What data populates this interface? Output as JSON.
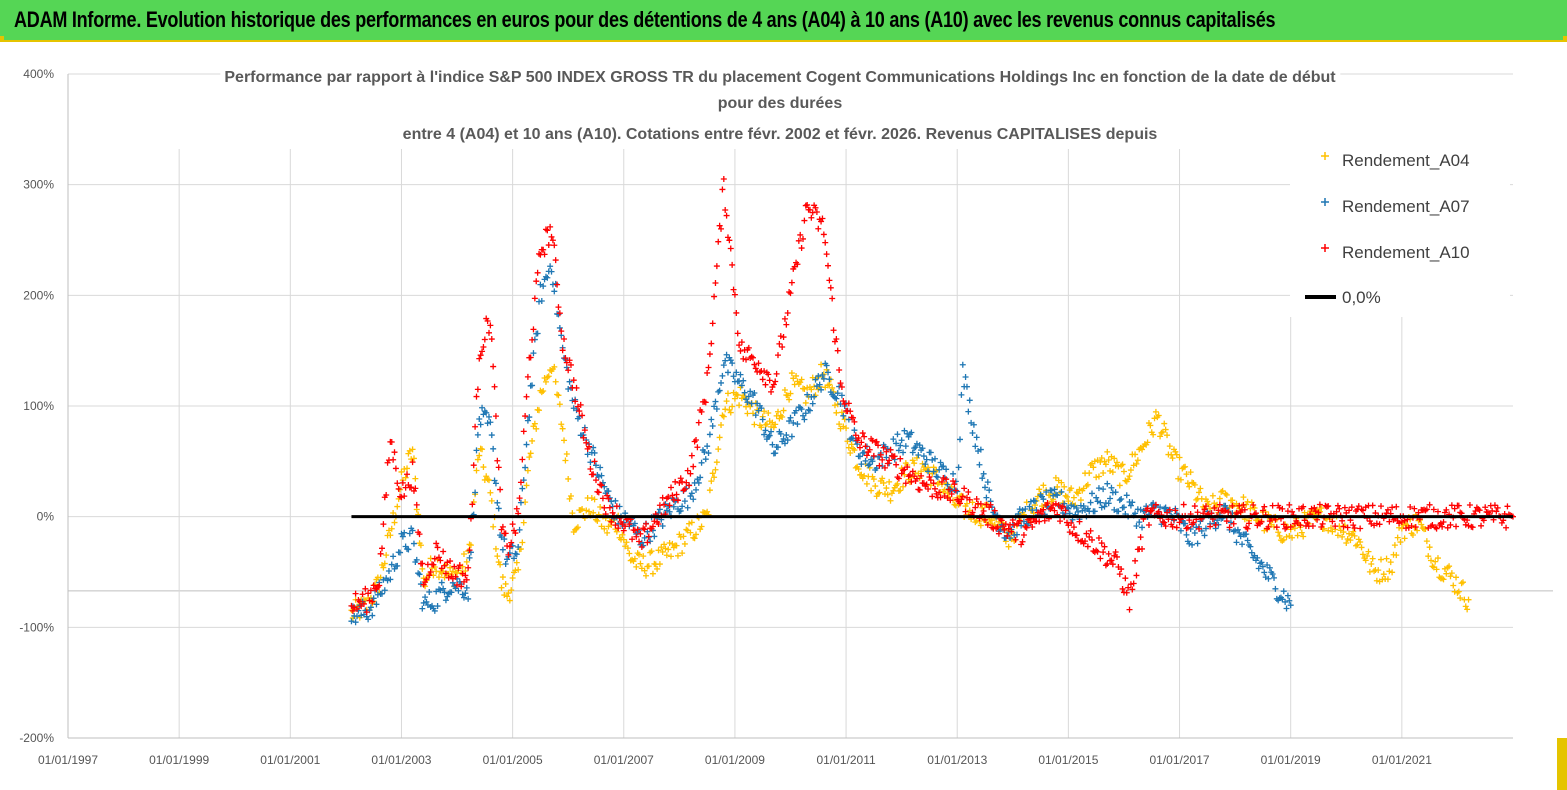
{
  "banner": {
    "title": "ADAM Informe. Evolution historique des performances en euros pour des détentions de 4 ans (A04) à 10 ans (A10) avec les revenus connus capitalisés",
    "color": "#55d655"
  },
  "chart_data": {
    "type": "scatter",
    "title_lines": [
      "Performance par rapport à l'indice S&P 500 INDEX GROSS TR  du placement Cogent Communications Holdings Inc en fonction de la date de début",
      "pour des durées",
      "entre 4 (A04) et 10 ans (A10). Cotations entre févr. 2002 et févr. 2026. Revenus CAPITALISES depuis"
    ],
    "y_ticks": [
      "400%",
      "300%",
      "200%",
      "100%",
      "0%",
      "-100%",
      "-200%"
    ],
    "y_range": [
      -200,
      400
    ],
    "x_ticks": [
      "01/01/1997",
      "01/01/1999",
      "01/01/2001",
      "01/01/2003",
      "01/01/2005",
      "01/01/2007",
      "01/01/2009",
      "01/01/2011",
      "01/01/2013",
      "01/01/2015",
      "01/01/2017",
      "01/01/2019",
      "01/01/2021"
    ],
    "x_range": [
      1997.0,
      2023.0
    ],
    "legend": [
      {
        "name": "Rendement_A04",
        "color": "#ffc000",
        "marker": "+"
      },
      {
        "name": "Rendement_A07",
        "color": "#1f77b4",
        "marker": "+"
      },
      {
        "name": "Rendement_A10",
        "color": "#ff0000",
        "marker": "+"
      },
      {
        "name": "0,0%",
        "color": "#000000",
        "marker": "line"
      }
    ],
    "legend_position": "top-right",
    "series": [
      {
        "name": "Rendement_A04",
        "color": "#ffc000",
        "x": [
          2002.1,
          2002.4,
          2002.6,
          2002.8,
          2003.0,
          2003.2,
          2003.4,
          2003.6,
          2003.9,
          2004.2,
          2004.4,
          2004.6,
          2004.8,
          2004.9,
          2005.1,
          2005.3,
          2005.5,
          2005.7,
          2005.9,
          2006.1,
          2006.4,
          2006.7,
          2006.9,
          2007.1,
          2007.3,
          2007.6,
          2007.9,
          2008.2,
          2008.5,
          2008.8,
          2009.1,
          2009.4,
          2009.7,
          2010.0,
          2010.3,
          2010.6,
          2010.9,
          2011.2,
          2011.5,
          2011.8,
          2012.1,
          2012.4,
          2012.7,
          2013.0,
          2013.3,
          2013.6,
          2013.9,
          2014.2,
          2014.5,
          2014.8,
          2015.1,
          2015.4,
          2015.7,
          2016.0,
          2016.3,
          2016.6,
          2016.9,
          2017.2,
          2017.5,
          2017.8,
          2018.1,
          2018.4,
          2018.7,
          2019.0,
          2019.3,
          2019.6,
          2019.9,
          2020.2,
          2020.5,
          2020.8,
          2021.0,
          2021.3,
          2021.6,
          2021.9,
          2022.2
        ],
        "y": [
          -88,
          -80,
          -60,
          -15,
          30,
          60,
          -60,
          -40,
          -55,
          -40,
          60,
          20,
          -60,
          -70,
          -50,
          50,
          110,
          140,
          80,
          -5,
          10,
          -10,
          -5,
          -35,
          -45,
          -40,
          -30,
          -15,
          0,
          100,
          110,
          90,
          80,
          120,
          110,
          130,
          90,
          50,
          30,
          25,
          40,
          45,
          30,
          10,
          5,
          0,
          -20,
          0,
          20,
          25,
          15,
          40,
          50,
          35,
          60,
          90,
          50,
          30,
          5,
          15,
          10,
          0,
          -10,
          -15,
          -5,
          0,
          -10,
          -20,
          -50,
          -45,
          -10,
          -5,
          -40,
          -55,
          -75
        ]
      },
      {
        "name": "Rendement_A07",
        "color": "#1f77b4",
        "x": [
          2002.1,
          2002.4,
          2002.6,
          2002.8,
          2003.0,
          2003.2,
          2003.4,
          2003.6,
          2003.9,
          2004.2,
          2004.4,
          2004.6,
          2004.8,
          2004.9,
          2005.1,
          2005.3,
          2005.5,
          2005.7,
          2005.9,
          2006.1,
          2006.4,
          2006.7,
          2006.9,
          2007.1,
          2007.3,
          2007.6,
          2007.9,
          2008.2,
          2008.5,
          2008.8,
          2009.1,
          2009.4,
          2009.7,
          2010.0,
          2010.3,
          2010.6,
          2010.9,
          2011.2,
          2011.5,
          2011.8,
          2012.1,
          2012.4,
          2012.7,
          2013.0,
          2013.1,
          2013.3,
          2013.6,
          2013.9,
          2014.2,
          2014.5,
          2014.8,
          2015.1,
          2015.4,
          2015.7,
          2016.0,
          2016.3,
          2016.6,
          2016.9,
          2017.2,
          2017.5,
          2017.8,
          2018.1,
          2018.4,
          2018.7,
          2019.0
        ],
        "y": [
          -90,
          -85,
          -70,
          -50,
          -25,
          -20,
          -80,
          -75,
          -60,
          -65,
          90,
          80,
          -20,
          -40,
          -30,
          100,
          200,
          230,
          150,
          100,
          60,
          20,
          0,
          -5,
          -20,
          -5,
          10,
          20,
          60,
          140,
          120,
          100,
          60,
          80,
          100,
          130,
          110,
          60,
          50,
          60,
          70,
          55,
          40,
          30,
          130,
          80,
          10,
          -15,
          0,
          10,
          15,
          5,
          10,
          20,
          10,
          0,
          5,
          0,
          -20,
          -5,
          5,
          -20,
          -40,
          -60,
          -80
        ]
      },
      {
        "name": "Rendement_A10",
        "color": "#ff0000",
        "x": [
          2002.1,
          2002.4,
          2002.6,
          2002.8,
          2003.0,
          2003.2,
          2003.4,
          2003.6,
          2003.9,
          2004.2,
          2004.4,
          2004.6,
          2004.8,
          2004.9,
          2005.1,
          2005.3,
          2005.5,
          2005.7,
          2005.9,
          2006.1,
          2006.4,
          2006.7,
          2006.9,
          2007.1,
          2007.3,
          2007.6,
          2007.9,
          2008.2,
          2008.5,
          2008.8,
          2009.1,
          2009.4,
          2009.7,
          2010.0,
          2010.3,
          2010.6,
          2010.9,
          2011.2,
          2011.5,
          2011.8,
          2012.1,
          2012.4,
          2012.7,
          2013.0,
          2013.3,
          2013.6,
          2013.9,
          2014.2,
          2014.5,
          2014.8,
          2015.1,
          2015.4,
          2015.7,
          2015.9,
          2016.1,
          2016.4,
          2016.8,
          2017.2,
          2017.6,
          2018.0,
          2018.5,
          2019.0,
          2019.5,
          2020.0,
          2020.5,
          2021.0,
          2021.5,
          2022.0,
          2022.5,
          2023.0
        ],
        "y": [
          -80,
          -75,
          -55,
          70,
          20,
          40,
          -60,
          -30,
          -50,
          -55,
          150,
          180,
          -10,
          -30,
          0,
          140,
          240,
          260,
          160,
          120,
          50,
          10,
          0,
          -10,
          -25,
          0,
          20,
          40,
          120,
          300,
          150,
          140,
          120,
          200,
          280,
          260,
          120,
          70,
          60,
          50,
          40,
          30,
          25,
          20,
          10,
          0,
          -10,
          -15,
          0,
          10,
          -10,
          -20,
          -35,
          -45,
          -75,
          0,
          0,
          0,
          0,
          0,
          0,
          0,
          0,
          0,
          0,
          0,
          0,
          0,
          0,
          0
        ]
      }
    ],
    "reference_line": {
      "label": "0,0%",
      "y": 0,
      "x_start": 2002.1,
      "x_end": 2023.0,
      "color": "#000000"
    }
  }
}
